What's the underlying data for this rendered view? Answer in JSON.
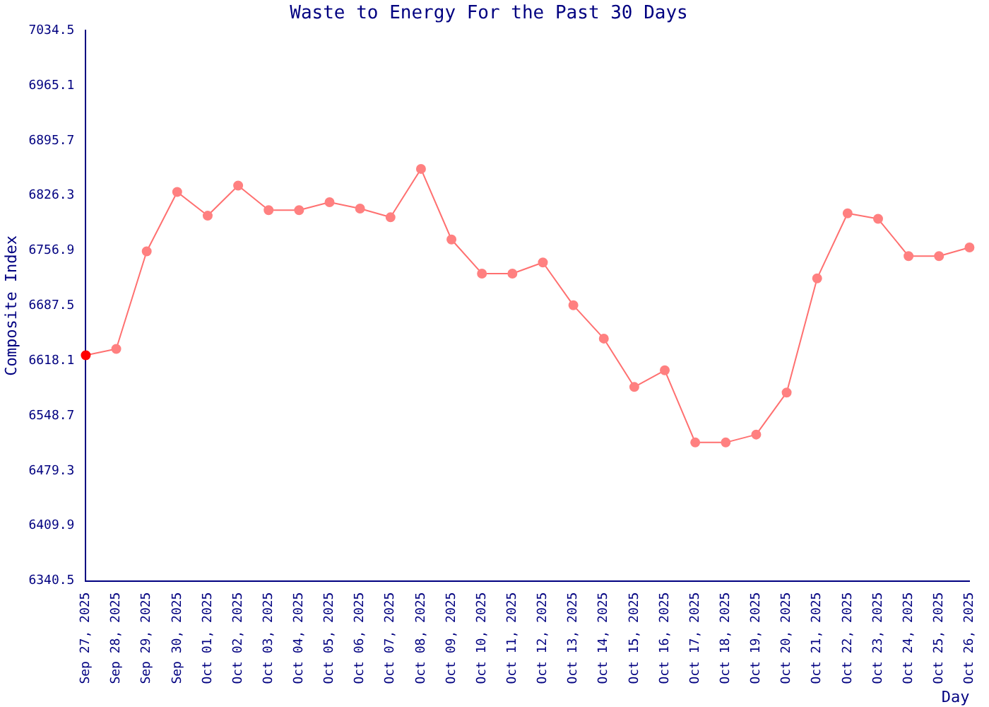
{
  "chart_data": {
    "type": "line",
    "title": "Waste to Energy For the Past 30 Days",
    "xlabel": "Day",
    "ylabel": "Composite Index",
    "categories": [
      "Sep 27, 2025",
      "Sep 28, 2025",
      "Sep 29, 2025",
      "Sep 30, 2025",
      "Oct 01, 2025",
      "Oct 02, 2025",
      "Oct 03, 2025",
      "Oct 04, 2025",
      "Oct 05, 2025",
      "Oct 06, 2025",
      "Oct 07, 2025",
      "Oct 08, 2025",
      "Oct 09, 2025",
      "Oct 10, 2025",
      "Oct 11, 2025",
      "Oct 12, 2025",
      "Oct 13, 2025",
      "Oct 14, 2025",
      "Oct 15, 2025",
      "Oct 16, 2025",
      "Oct 17, 2025",
      "Oct 18, 2025",
      "Oct 19, 2025",
      "Oct 20, 2025",
      "Oct 21, 2025",
      "Oct 22, 2025",
      "Oct 23, 2025",
      "Oct 24, 2025",
      "Oct 25, 2025",
      "Oct 26, 2025"
    ],
    "series": [
      {
        "color": "#ff7070",
        "colors": [
          "#ff0000",
          "#ff8080",
          "#ff8080",
          "#ff8080",
          "#ff8080",
          "#ff8080",
          "#ff8080",
          "#ff8080",
          "#ff8080",
          "#ff8080",
          "#ff8080",
          "#ff8080",
          "#ff8080",
          "#ff8080",
          "#ff8080",
          "#ff8080",
          "#ff8080",
          "#ff8080",
          "#ff8080",
          "#ff8080",
          "#ff8080",
          "#ff8080",
          "#ff8080",
          "#ff8080",
          "#ff8080",
          "#ff8080",
          "#ff8080",
          "#ff8080",
          "#ff8080",
          "#ff8080"
        ],
        "values": [
          6625,
          6633,
          6756,
          6831,
          6801,
          6839,
          6808,
          6808,
          6818,
          6810,
          6799,
          6860,
          6771,
          6728,
          6728,
          6742,
          6688,
          6646,
          6585,
          6606,
          6515,
          6515,
          6525,
          6578,
          6722,
          6804,
          6797,
          6750,
          6750,
          6761
        ]
      }
    ],
    "ylim": [
      6340.5,
      7034.5
    ],
    "yticks": [
      6340.5,
      6409.9,
      6479.3,
      6548.7,
      6618.1,
      6687.5,
      6756.9,
      6826.3,
      6895.7,
      6965.1,
      7034.5
    ],
    "grid": false,
    "legend": false,
    "marker": "circle",
    "line_style": "solid"
  }
}
